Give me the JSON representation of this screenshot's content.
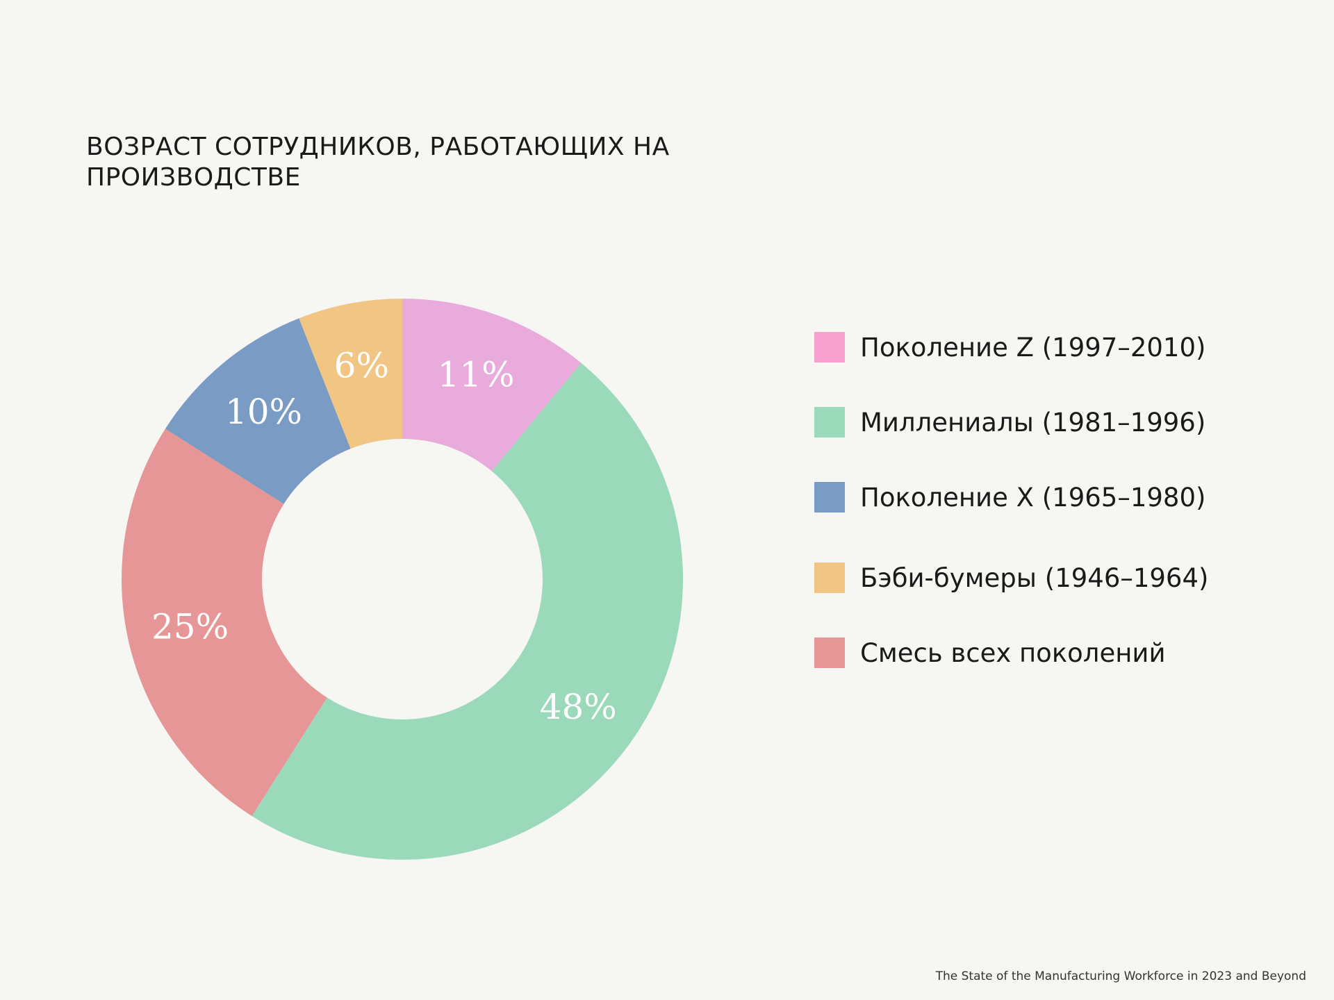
{
  "title": "ВОЗРАСТ СОТРУДНИКОВ, РАБОТАЮЩИХ НА ПРОИЗВОДСТВЕ",
  "source": "The State of the Manufacturing Workforce in 2023 and Beyond",
  "legend": [
    {
      "label": "Поколение Z (1997–2010)",
      "color": "#f7a1cf"
    },
    {
      "label": "Миллениалы (1981–1996)",
      "color": "#9ad9ba"
    },
    {
      "label": "Поколение X (1965–1980)",
      "color": "#7a9bc4"
    },
    {
      "label": "Бэби-бумеры (1946–1964)",
      "color": "#f1c583"
    },
    {
      "label": "Смесь всех поколений",
      "color": "#e69696"
    }
  ],
  "chart_data": {
    "type": "pie",
    "subtype": "donut",
    "title": "ВОЗРАСТ СОТРУДНИКОВ, РАБОТАЮЩИХ НА ПРОИЗВОДСТВЕ",
    "categories": [
      "Поколение Z (1997–2010)",
      "Миллениалы (1981–1996)",
      "Смесь всех поколений",
      "Поколение X (1965–1980)",
      "Бэби-бумеры (1946–1964)"
    ],
    "values": [
      11,
      48,
      25,
      10,
      6
    ],
    "labels": [
      "11%",
      "48%",
      "25%",
      "10%",
      "6%"
    ],
    "colors": [
      "#e8abdb",
      "#9ad9ba",
      "#e69696",
      "#7a9bc4",
      "#f1c583"
    ],
    "start_angle": "12 o'clock, clockwise",
    "legend_position": "right",
    "source": "The State of the Manufacturing Workforce in 2023 and Beyond"
  }
}
